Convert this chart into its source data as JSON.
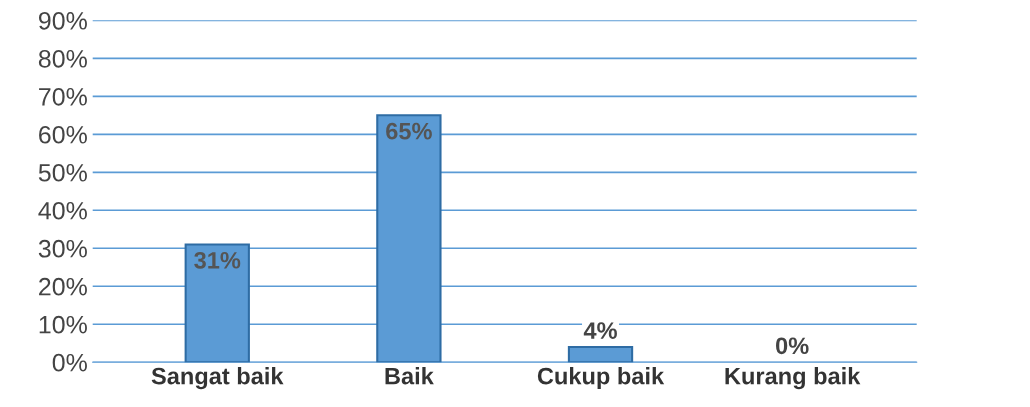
{
  "chart_data": {
    "type": "bar",
    "categories": [
      "Sangat baik",
      "Baik",
      "Cukup baik",
      "Kurang baik"
    ],
    "values": [
      31,
      65,
      4,
      0
    ],
    "value_labels": [
      "31%",
      "65%",
      "4%",
      "0%"
    ],
    "color": "#5b9bd5",
    "ylim": [
      0,
      90
    ],
    "yticks": [
      {
        "value": 0,
        "label": "0%"
      },
      {
        "value": 10,
        "label": "10%"
      },
      {
        "value": 20,
        "label": "20%"
      },
      {
        "value": 30,
        "label": "30%"
      },
      {
        "value": 40,
        "label": "40%"
      },
      {
        "value": 50,
        "label": "50%"
      },
      {
        "value": 60,
        "label": "60%"
      },
      {
        "value": 70,
        "label": "70%"
      },
      {
        "value": 80,
        "label": "80%"
      },
      {
        "value": 90,
        "label": "90%"
      }
    ],
    "grid": "y"
  }
}
